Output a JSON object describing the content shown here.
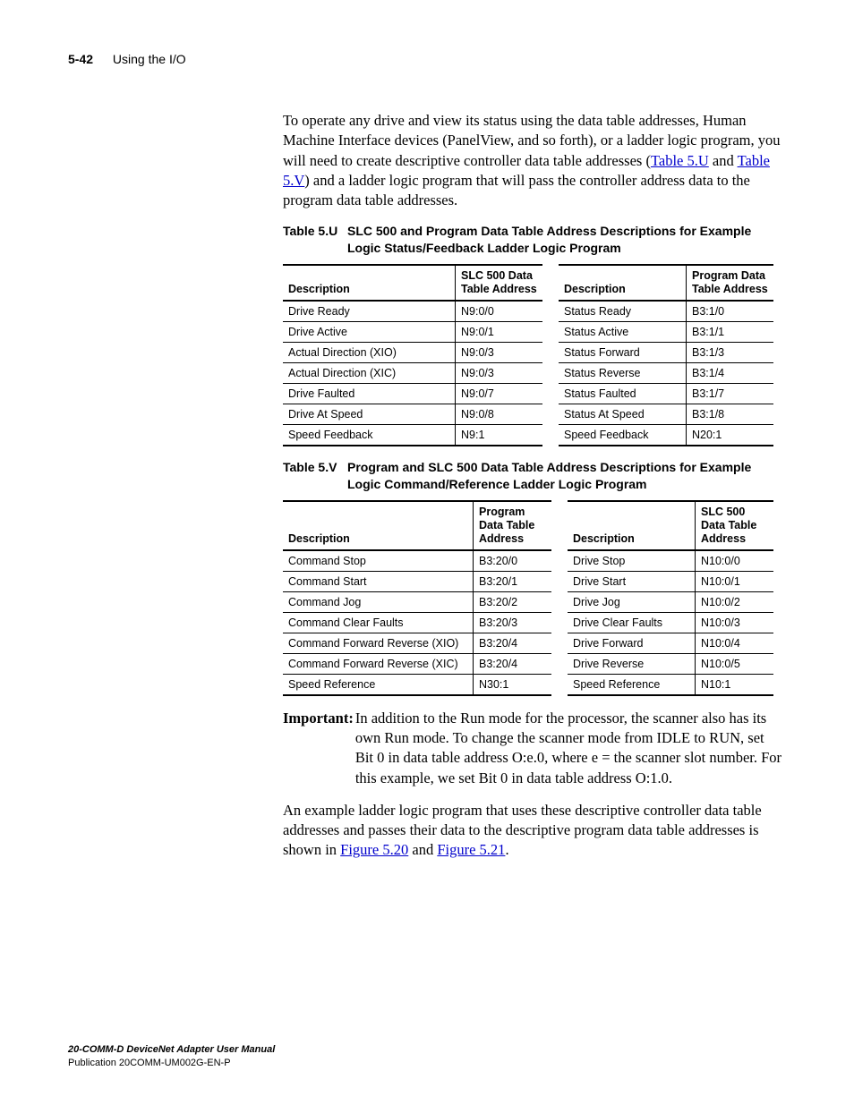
{
  "header": {
    "page_number": "5-42",
    "section_title": "Using the I/O"
  },
  "intro": {
    "part1": "To operate any drive and view its status using the data table addresses, Human Machine Interface devices (PanelView, and so forth), or a ladder logic program, you will need to create descriptive controller data table addresses (",
    "link1": "Table 5.U",
    "mid1": " and ",
    "link2": "Table 5.V",
    "part2": ") and a ladder logic program that will pass the controller address data to the program data table addresses."
  },
  "tableU": {
    "caption_label": "Table 5.U",
    "caption_text": "SLC 500 and Program Data Table Address Descriptions for Example Logic Status/Feedback Ladder Logic Program",
    "left": {
      "col1_header": "Description",
      "col2_header": "SLC 500 Data Table Address",
      "rows": [
        {
          "c1": "Drive Ready",
          "c2": "N9:0/0"
        },
        {
          "c1": "Drive Active",
          "c2": "N9:0/1"
        },
        {
          "c1": "Actual Direction (XIO)",
          "c2": "N9:0/3"
        },
        {
          "c1": "Actual Direction (XIC)",
          "c2": "N9:0/3"
        },
        {
          "c1": "Drive Faulted",
          "c2": "N9:0/7"
        },
        {
          "c1": "Drive At Speed",
          "c2": "N9:0/8"
        },
        {
          "c1": "Speed Feedback",
          "c2": "N9:1"
        }
      ]
    },
    "right": {
      "col1_header": "Description",
      "col2_header": "Program Data Table Address",
      "rows": [
        {
          "c1": "Status Ready",
          "c2": "B3:1/0"
        },
        {
          "c1": "Status Active",
          "c2": "B3:1/1"
        },
        {
          "c1": "Status Forward",
          "c2": "B3:1/3"
        },
        {
          "c1": "Status Reverse",
          "c2": "B3:1/4"
        },
        {
          "c1": "Status Faulted",
          "c2": "B3:1/7"
        },
        {
          "c1": "Status At Speed",
          "c2": "B3:1/8"
        },
        {
          "c1": "Speed Feedback",
          "c2": "N20:1"
        }
      ]
    }
  },
  "tableV": {
    "caption_label": "Table 5.V",
    "caption_text": "Program and SLC 500 Data Table Address Descriptions for Example Logic Command/Reference Ladder Logic Program",
    "left": {
      "col1_header": "Description",
      "col2_header": "Program Data Table Address",
      "rows": [
        {
          "c1": "Command Stop",
          "c2": "B3:20/0"
        },
        {
          "c1": "Command Start",
          "c2": "B3:20/1"
        },
        {
          "c1": "Command Jog",
          "c2": "B3:20/2"
        },
        {
          "c1": "Command Clear Faults",
          "c2": "B3:20/3"
        },
        {
          "c1": "Command Forward Reverse (XIO)",
          "c2": "B3:20/4"
        },
        {
          "c1": "Command Forward Reverse (XIC)",
          "c2": "B3:20/4"
        },
        {
          "c1": "Speed Reference",
          "c2": "N30:1"
        }
      ]
    },
    "right": {
      "col1_header": "Description",
      "col2_header": "SLC 500 Data Table Address",
      "rows": [
        {
          "c1": "Drive Stop",
          "c2": "N10:0/0"
        },
        {
          "c1": "Drive Start",
          "c2": "N10:0/1"
        },
        {
          "c1": "Drive Jog",
          "c2": "N10:0/2"
        },
        {
          "c1": "Drive Clear Faults",
          "c2": "N10:0/3"
        },
        {
          "c1": "Drive Forward",
          "c2": "N10:0/4"
        },
        {
          "c1": "Drive Reverse",
          "c2": "N10:0/5"
        },
        {
          "c1": "Speed Reference",
          "c2": "N10:1"
        }
      ]
    }
  },
  "important": {
    "label": "Important:",
    "text": "In addition to the Run mode for the processor, the scanner also has its own Run mode. To change the scanner mode from IDLE to RUN, set Bit 0 in data table address O:e.0, where e = the scanner slot number. For this example, we set Bit 0 in data table address O:1.0."
  },
  "closing": {
    "part1": "An example ladder logic program that uses these descriptive controller data table addresses and passes their data to the descriptive program data table addresses is shown in ",
    "link1": "Figure 5.20",
    "mid1": " and ",
    "link2": "Figure 5.21",
    "part2": "."
  },
  "footer": {
    "title": "20-COMM-D DeviceNet Adapter User Manual",
    "pub": "Publication 20COMM-UM002G-EN-P"
  },
  "style": {
    "link_color": "#0000cc",
    "text_color": "#000000",
    "background": "#ffffff",
    "body_font_size_pt": 12,
    "sans_font_size_pt": 9,
    "table_border_color": "#000000"
  }
}
